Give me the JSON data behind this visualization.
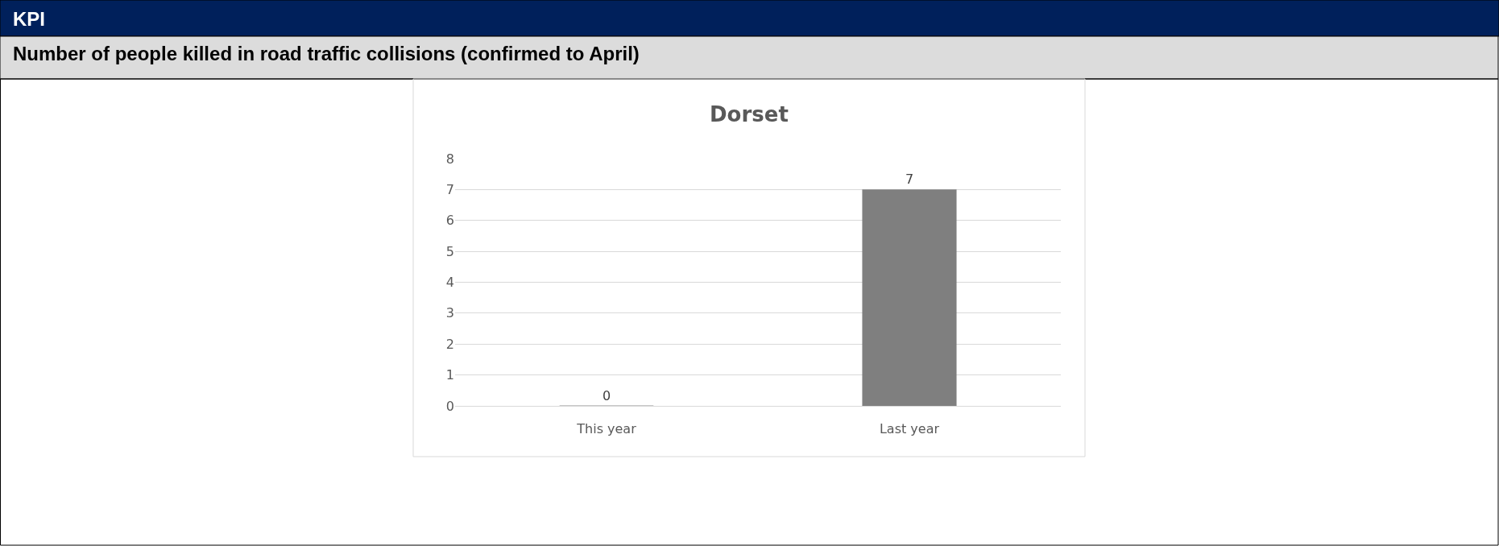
{
  "chart_data": {
    "type": "bar",
    "title": "Dorset",
    "annotations": [
      "KPI",
      "Number of people killed in road traffic collisions (confirmed to April)"
    ],
    "categories": [
      "This year",
      "Last year"
    ],
    "values": [
      0,
      7
    ],
    "color": "#7f7f7f",
    "ylim": [
      0,
      8
    ],
    "yticks": [
      0,
      1,
      2,
      3,
      4,
      5,
      6,
      7,
      8
    ],
    "grid": "y",
    "legend": false,
    "data_labels": true
  }
}
